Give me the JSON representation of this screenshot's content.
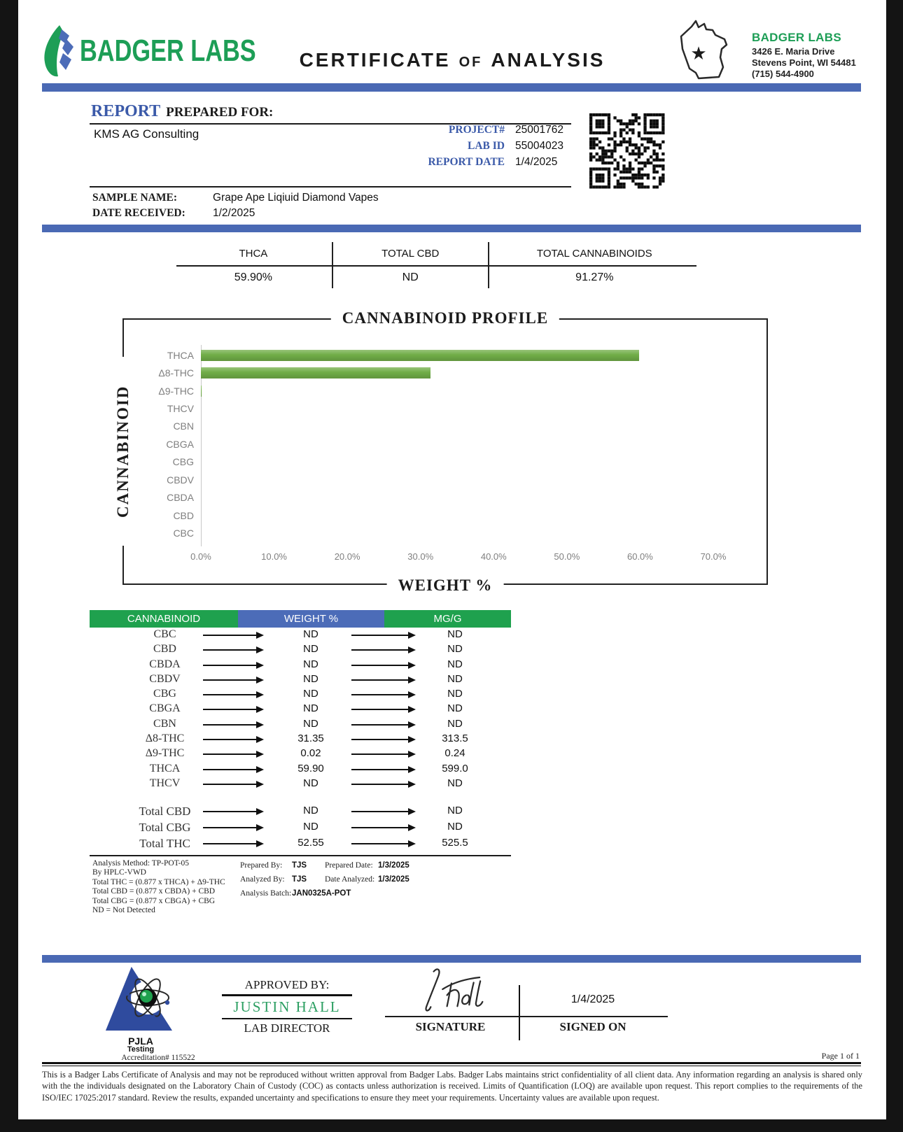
{
  "brand": {
    "logo_text": "BADGER LABS",
    "green": "#1D9E56",
    "blue": "#4A69B4"
  },
  "header": {
    "title_parts": [
      "CERTIFICATE",
      "OF",
      "ANALYSIS"
    ],
    "lab": {
      "name": "BADGER LABS",
      "address1": "3426 E. Maria Drive",
      "address2": "Stevens Point, WI 54481",
      "phone": "(715) 544-4900"
    }
  },
  "report": {
    "heading_word": "REPORT",
    "heading_rest": "PREPARED FOR:",
    "client": "KMS AG Consulting",
    "fields": [
      {
        "label": "PROJECT#",
        "value": "25001762"
      },
      {
        "label": "LAB ID",
        "value": "55004023"
      },
      {
        "label": "REPORT DATE",
        "value": "1/4/2025"
      }
    ],
    "sample_name_label": "SAMPLE NAME:",
    "sample_name": "Grape Ape Liqiuid Diamond Vapes",
    "date_received_label": "DATE RECEIVED:",
    "date_received": "1/2/2025"
  },
  "summary": {
    "columns": [
      {
        "label": "THCA",
        "value": "59.90%"
      },
      {
        "label": "TOTAL CBD",
        "value": "ND"
      },
      {
        "label": "TOTAL CANNABINOIDS",
        "value": "91.27%"
      }
    ]
  },
  "chart_data": {
    "type": "bar",
    "orientation": "horizontal",
    "title": "CANNABINOID PROFILE",
    "xlabel": "WEIGHT %",
    "ylabel": "CANNABINOID",
    "categories": [
      "THCA",
      "Δ8-THC",
      "Δ9-THC",
      "THCV",
      "CBN",
      "CBGA",
      "CBG",
      "CBDV",
      "CBDA",
      "CBD",
      "CBC"
    ],
    "values": [
      59.9,
      31.35,
      0.02,
      0,
      0,
      0,
      0,
      0,
      0,
      0,
      0
    ],
    "xlim": [
      0,
      70
    ],
    "x_ticks": [
      "0.0%",
      "10.0%",
      "20.0%",
      "30.0%",
      "40.0%",
      "50.0%",
      "60.0%",
      "70.0%"
    ],
    "bar_color": "#70AD47",
    "grid": false,
    "legend": false
  },
  "results_table": {
    "headers": [
      {
        "label": "CANNABINOID",
        "bg": "#1FA14E"
      },
      {
        "label": "WEIGHT %",
        "bg": "#4C6CB8"
      },
      {
        "label": "MG/G",
        "bg": "#1FA14E"
      }
    ],
    "rows": [
      {
        "name": "CBC",
        "weight": "ND",
        "mgg": "ND"
      },
      {
        "name": "CBD",
        "weight": "ND",
        "mgg": "ND"
      },
      {
        "name": "CBDA",
        "weight": "ND",
        "mgg": "ND"
      },
      {
        "name": "CBDV",
        "weight": "ND",
        "mgg": "ND"
      },
      {
        "name": "CBG",
        "weight": "ND",
        "mgg": "ND"
      },
      {
        "name": "CBGA",
        "weight": "ND",
        "mgg": "ND"
      },
      {
        "name": "CBN",
        "weight": "ND",
        "mgg": "ND"
      },
      {
        "name": "Δ8-THC",
        "weight": "31.35",
        "mgg": "313.5"
      },
      {
        "name": "Δ9-THC",
        "weight": "0.02",
        "mgg": "0.24"
      },
      {
        "name": "THCA",
        "weight": "59.90",
        "mgg": "599.0"
      },
      {
        "name": "THCV",
        "weight": "ND",
        "mgg": "ND"
      }
    ],
    "totals": [
      {
        "name": "Total CBD",
        "weight": "ND",
        "mgg": "ND"
      },
      {
        "name": "Total CBG",
        "weight": "ND",
        "mgg": "ND"
      },
      {
        "name": "Total THC",
        "weight": "52.55",
        "mgg": "525.5"
      }
    ]
  },
  "methodology": {
    "left_lines": [
      "Analysis Method: TP-POT-05",
      "By HPLC-VWD",
      "Total THC = (0.877 x  THCA) + Δ9-THC",
      "Total CBD = (0.877 x  CBDA) + CBD",
      "Total CBG = (0.877 x  CBGA) + CBG",
      "ND = Not Detected"
    ],
    "prepared_by_label": "Prepared By:",
    "prepared_by": "TJS",
    "prepared_date_label": "Prepared Date:",
    "prepared_date": "1/3/2025",
    "analyzed_by_label": "Analyzed By:",
    "analyzed_by": "TJS",
    "date_analyzed_label": "Date Analyzed:",
    "date_analyzed": "1/3/2025",
    "analysis_batch_label": "Analysis Batch:",
    "analysis_batch": "JAN0325A-POT"
  },
  "approval": {
    "approved_by_label": "APPROVED BY:",
    "approver_name": "JUSTIN HALL",
    "approver_title": "LAB DIRECTOR",
    "signature_label": "SIGNATURE",
    "signed_on_label": "SIGNED ON",
    "signed_on_date": "1/4/2025"
  },
  "accreditation": {
    "org": "PJLA",
    "org_sub": "Testing",
    "number_line": "Accreditation# 115522"
  },
  "footer": {
    "page_label": "Page 1 of 1",
    "disclaimer": "This is a Badger Labs Certificate of Analysis and may not be reproduced without written approval from Badger Labs. Badger Labs maintains strict confidentiality of all client data. Any information regarding an analysis is shared only with the the individuals designated on the Laboratory Chain of Custody (COC) as contacts unless authorization is received. Limits of Quantification (LOQ) are available upon request. This report complies to the requirements of the ISO/IEC 17025:2017 standard. Review the results, expanded uncertainty and specifications to ensure they meet your requirements. Uncertainty values are available upon request."
  }
}
